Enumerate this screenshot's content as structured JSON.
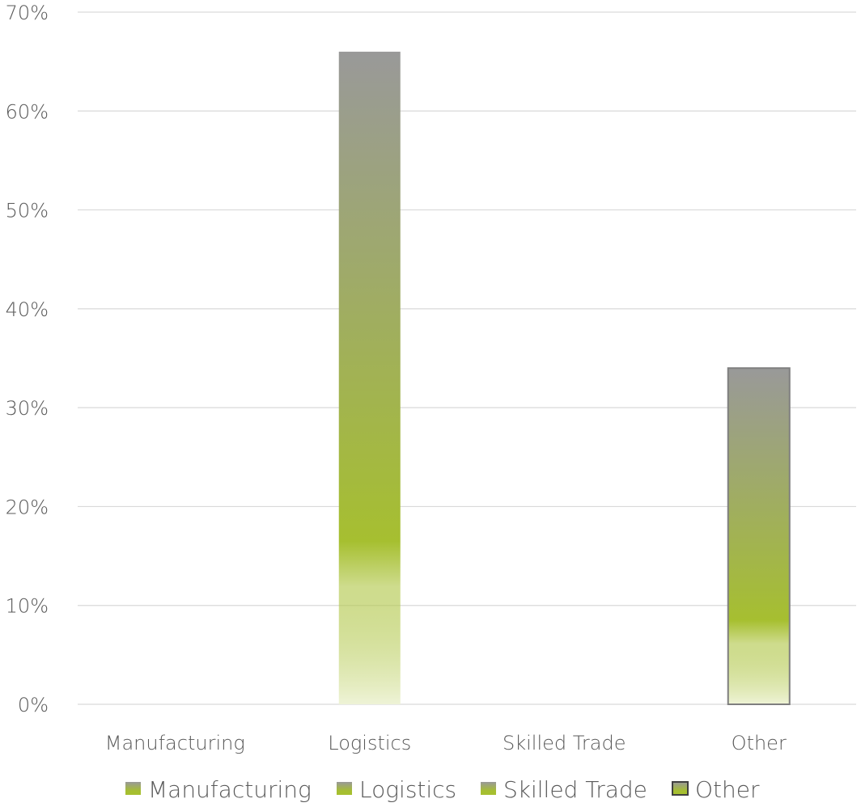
{
  "chart_data": {
    "type": "bar",
    "categories": [
      "Manufacturing",
      "Logistics",
      "Skilled Trade",
      "Other"
    ],
    "values": [
      0,
      66,
      0,
      34
    ],
    "value_unit": "%",
    "y_ticks": [
      "0%",
      "10%",
      "20%",
      "30%",
      "40%",
      "50%",
      "60%",
      "70%"
    ],
    "ylim": [
      0,
      70
    ],
    "grid": true,
    "legend_position": "bottom",
    "legend": [
      {
        "label": "Manufacturing",
        "swatch": "gradient"
      },
      {
        "label": "Logistics",
        "swatch": "gradient"
      },
      {
        "label": "Skilled Trade",
        "swatch": "gradient"
      },
      {
        "label": "Other",
        "swatch": "outlined-gradient"
      }
    ],
    "colors": {
      "bar_top": "#999999",
      "bar_mid": "#a6bf30",
      "bar_bottom": "#eef3d6",
      "bar_outline": "#7f7f7f",
      "grid": "#d9d9d9",
      "text": "#595959"
    }
  }
}
